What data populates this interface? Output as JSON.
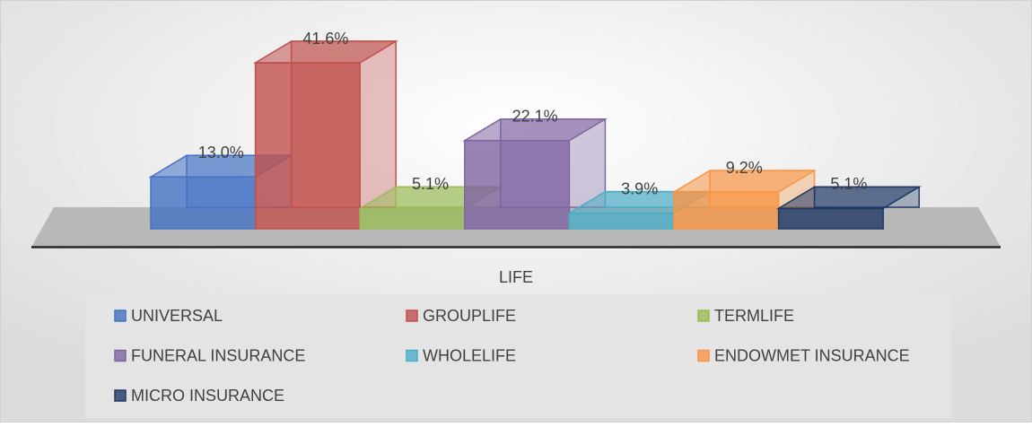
{
  "chart_data": {
    "type": "bar",
    "categories": [
      "LIFE"
    ],
    "series": [
      {
        "name": "UNIVERSAL",
        "color": "#4472c4",
        "values": [
          13.0
        ],
        "value_labels": [
          "13.0%"
        ]
      },
      {
        "name": "GROUPLIFE",
        "color": "#c0504d",
        "values": [
          41.6
        ],
        "value_labels": [
          "41.6%"
        ]
      },
      {
        "name": "TERMLIFE",
        "color": "#9bbb59",
        "values": [
          5.1
        ],
        "value_labels": [
          "5.1%"
        ]
      },
      {
        "name": "FUNERAL INSURANCE",
        "color": "#8064a2",
        "values": [
          22.1
        ],
        "value_labels": [
          "22.1%"
        ]
      },
      {
        "name": "WHOLELIFE",
        "color": "#4bacc6",
        "values": [
          3.9
        ],
        "value_labels": [
          "3.9%"
        ]
      },
      {
        "name": "ENDOWMET INSURANCE",
        "color": "#f79646",
        "values": [
          9.2
        ],
        "value_labels": [
          "9.2%"
        ]
      },
      {
        "name": "MICRO INSURANCE",
        "color": "#1f3864",
        "values": [
          5.1
        ],
        "value_labels": [
          "5.1%"
        ]
      }
    ]
  }
}
